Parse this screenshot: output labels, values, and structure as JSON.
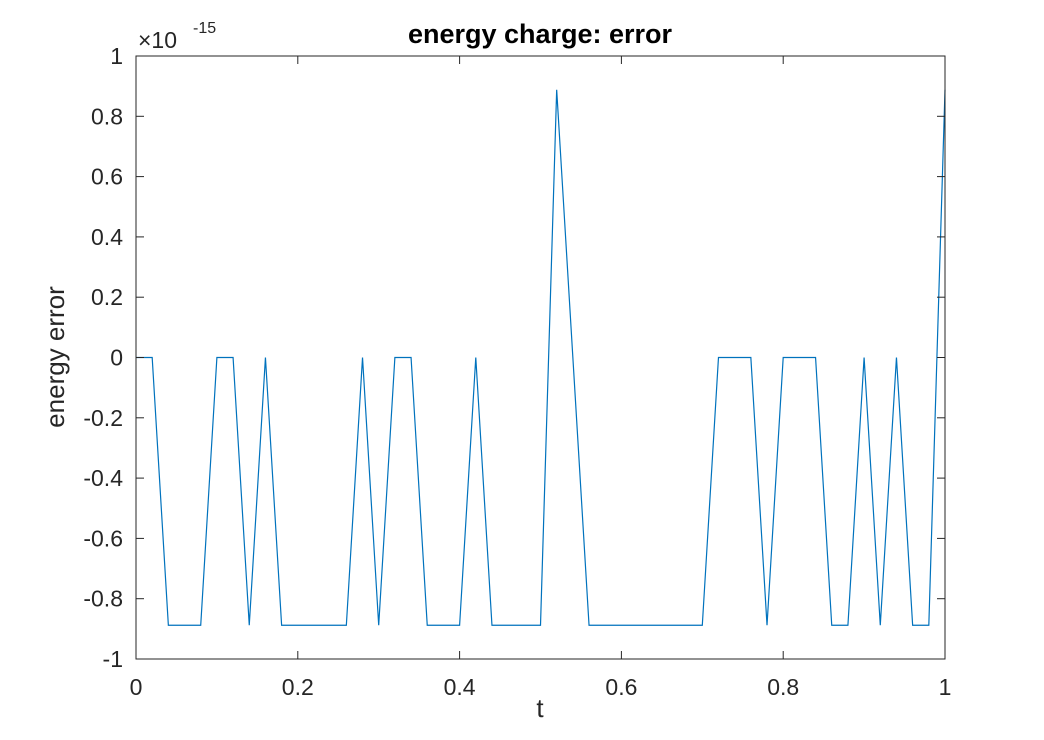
{
  "chart_data": {
    "type": "line",
    "title": "energy charge: error",
    "xlabel": "t",
    "ylabel": "energy error",
    "xlim": [
      0,
      1
    ],
    "ylim": [
      -1,
      1
    ],
    "y_multiplier": {
      "base": "×10",
      "exponent": "-15"
    },
    "x_ticks": [
      "0",
      "0.2",
      "0.4",
      "0.6",
      "0.8",
      "1"
    ],
    "x_tick_values": [
      0,
      0.2,
      0.4,
      0.6,
      0.8,
      1
    ],
    "y_ticks": [
      "-1",
      "-0.8",
      "-0.6",
      "-0.4",
      "-0.2",
      "0",
      "0.2",
      "0.4",
      "0.6",
      "0.8",
      "1"
    ],
    "y_tick_values": [
      -1,
      -0.8,
      -0.6,
      -0.4,
      -0.2,
      0,
      0.2,
      0.4,
      0.6,
      0.8,
      1
    ],
    "grid": false,
    "series": [
      {
        "color": "#0072BD",
        "x": [
          0,
          0.02,
          0.04,
          0.06,
          0.08,
          0.1,
          0.12,
          0.14,
          0.16,
          0.18,
          0.2,
          0.22,
          0.24,
          0.26,
          0.28,
          0.3,
          0.32,
          0.34,
          0.36,
          0.38,
          0.4,
          0.42,
          0.44,
          0.46,
          0.48,
          0.5,
          0.52,
          0.54,
          0.56,
          0.58,
          0.6,
          0.62,
          0.64,
          0.66,
          0.68,
          0.7,
          0.72,
          0.74,
          0.76,
          0.78,
          0.8,
          0.82,
          0.84,
          0.86,
          0.88,
          0.9,
          0.92,
          0.94,
          0.96,
          0.98,
          1.0
        ],
        "y": [
          0,
          0,
          -0.888,
          -0.888,
          -0.888,
          0,
          0,
          -0.888,
          0,
          -0.888,
          -0.888,
          -0.888,
          -0.888,
          -0.888,
          0,
          -0.888,
          0,
          0,
          -0.888,
          -0.888,
          -0.888,
          0,
          -0.888,
          -0.888,
          -0.888,
          -0.888,
          0.888,
          0,
          -0.888,
          -0.888,
          -0.888,
          -0.888,
          -0.888,
          -0.888,
          -0.888,
          -0.888,
          0,
          0,
          0,
          -0.888,
          0,
          0,
          0,
          -0.888,
          -0.888,
          0,
          -0.888,
          0,
          -0.888,
          -0.888,
          0.888
        ]
      }
    ]
  }
}
